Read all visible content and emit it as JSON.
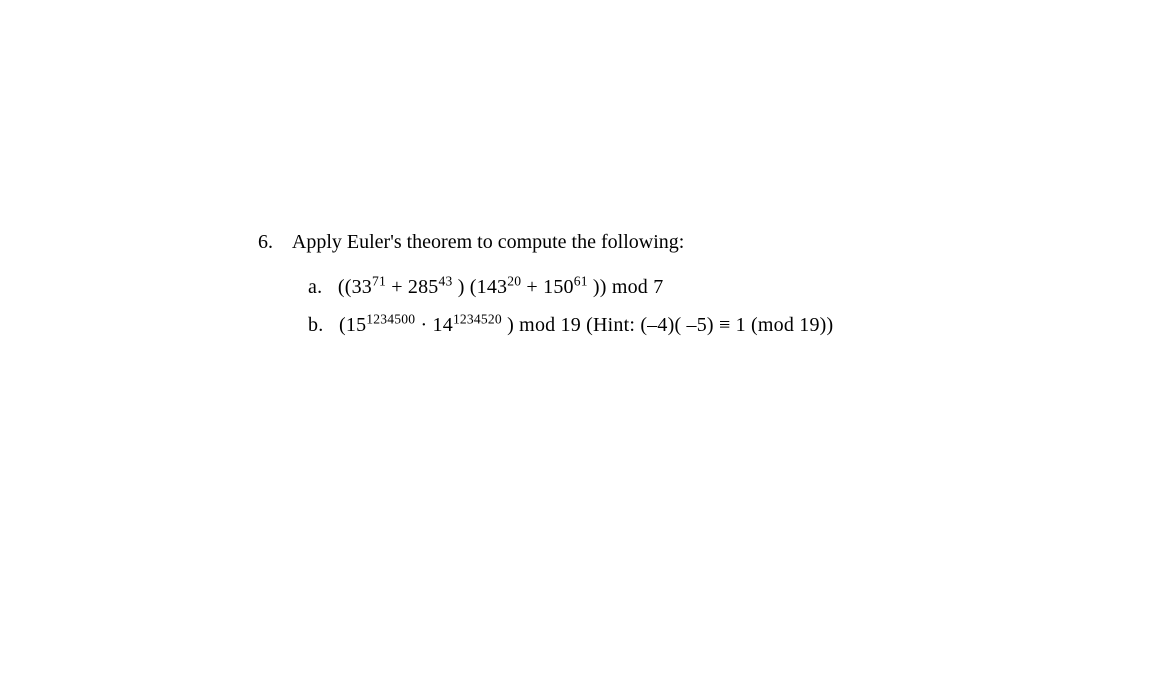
{
  "problem": {
    "number": "6.",
    "instruction": "Apply Euler's theorem to compute the following:",
    "parts": {
      "a": {
        "label": "a.",
        "expr_open1": "((33",
        "exp1": "71",
        "plus1": " + 285",
        "exp2": "43",
        "mid": " ) (143",
        "exp3": "20",
        "plus2": " + 150",
        "exp4": "61",
        "close": " ))  mod 7"
      },
      "b": {
        "label": "b.",
        "expr_open": "(15",
        "exp1": "1234500",
        "dot": "  ·  14",
        "exp2": "1234520",
        "close": " )  mod 19",
        "hint": "    (Hint:  (–4)( –5) ≡ 1 (mod 19))"
      }
    }
  },
  "style": {
    "text_color": "#000000",
    "background_color": "#ffffff",
    "font_family": "Times New Roman",
    "base_fontsize": 20,
    "sup_fontsize_ratio": 0.68
  }
}
